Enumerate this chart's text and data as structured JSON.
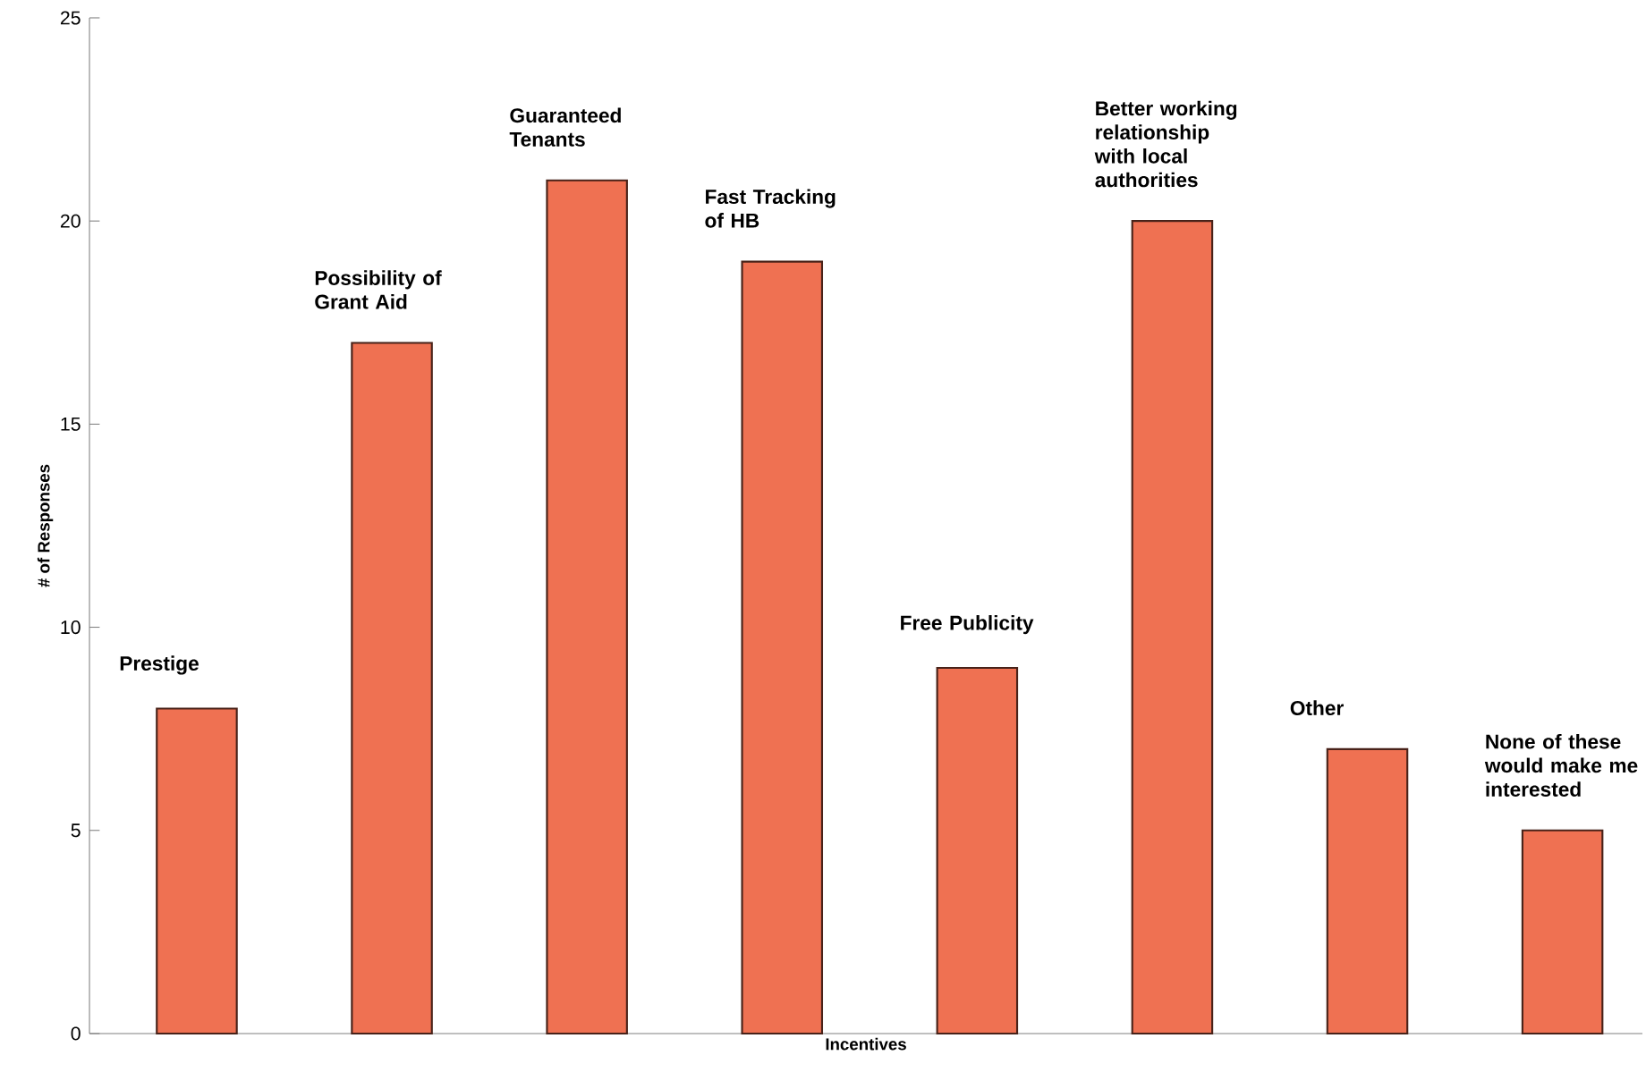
{
  "chart_data": {
    "type": "bar",
    "xlabel": "Incentives",
    "ylabel": "# of Responses",
    "categories": [
      "Prestige",
      "Possibility of Grant Aid",
      "Guaranteed Tenants",
      "Fast Tracking of HB",
      "Free Publicity",
      "Better working relationship with local authorities",
      "Other",
      "None of these would make me interested"
    ],
    "values": [
      8,
      17,
      21,
      19,
      9,
      20,
      7,
      5
    ],
    "color": "#ef7152",
    "ylim": [
      0,
      25
    ],
    "yticks": [
      0,
      5,
      10,
      15,
      20,
      25
    ],
    "grid": false
  }
}
